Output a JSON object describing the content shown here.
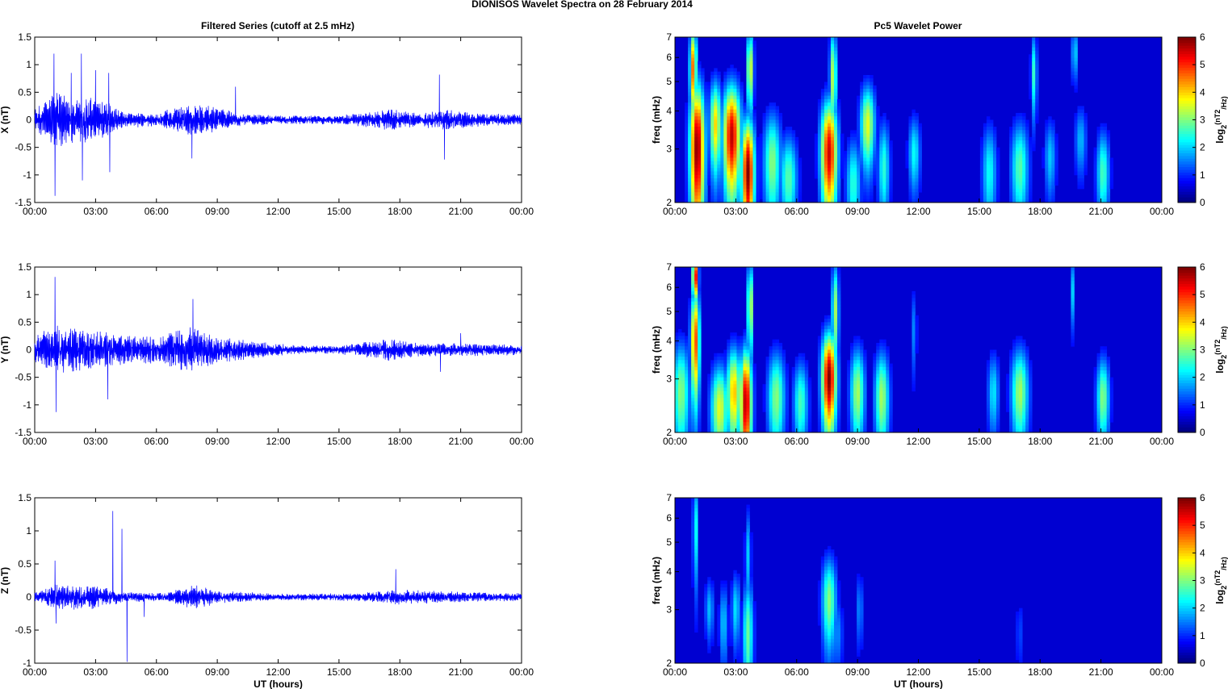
{
  "figure": {
    "suptitle": "DIONISOS Wavelet Spectra on 28 February  2014",
    "left_title": "Filtered Series (cutoff at 2.5 mHz)",
    "right_title": "Pc5 Wavelet Power",
    "xlabel": "UT (hours)"
  },
  "chart_data": [
    {
      "type": "line",
      "name": "x-series",
      "title": "Filtered Series (cutoff at 2.5 mHz)",
      "ylabel": "X (nT)",
      "xlabel": "",
      "xlim": [
        "00:00",
        "24:00"
      ],
      "ylim": [
        -1.5,
        1.5
      ],
      "x_ticks": [
        "00:00",
        "03:00",
        "06:00",
        "09:00",
        "12:00",
        "15:00",
        "18:00",
        "21:00",
        "00:00"
      ],
      "y_ticks": [
        "-1.5",
        "-1",
        "-0.5",
        "0",
        "0.5",
        "1",
        "1.5"
      ],
      "color": "#0000ff",
      "envelope": [
        {
          "t": 0.0,
          "amp": 0.25
        },
        {
          "t": 0.5,
          "amp": 0.35
        },
        {
          "t": 1.0,
          "amp": 0.55
        },
        {
          "t": 2.0,
          "amp": 0.45
        },
        {
          "t": 3.5,
          "amp": 0.35
        },
        {
          "t": 4.5,
          "amp": 0.15
        },
        {
          "t": 6.0,
          "amp": 0.12
        },
        {
          "t": 7.5,
          "amp": 0.3
        },
        {
          "t": 9.0,
          "amp": 0.25
        },
        {
          "t": 10.0,
          "amp": 0.12
        },
        {
          "t": 12.0,
          "amp": 0.08
        },
        {
          "t": 15.0,
          "amp": 0.08
        },
        {
          "t": 17.5,
          "amp": 0.2
        },
        {
          "t": 19.0,
          "amp": 0.12
        },
        {
          "t": 20.0,
          "amp": 0.2
        },
        {
          "t": 22.0,
          "amp": 0.12
        },
        {
          "t": 24.0,
          "amp": 0.1
        }
      ],
      "spikes": [
        {
          "t": 0.95,
          "v": 1.2
        },
        {
          "t": 1.0,
          "v": -1.38
        },
        {
          "t": 1.8,
          "v": 0.85
        },
        {
          "t": 2.3,
          "v": 1.2
        },
        {
          "t": 2.35,
          "v": -1.1
        },
        {
          "t": 3.0,
          "v": 0.9
        },
        {
          "t": 3.65,
          "v": 0.85
        },
        {
          "t": 3.7,
          "v": -0.95
        },
        {
          "t": 7.75,
          "v": -0.7
        },
        {
          "t": 9.9,
          "v": 0.6
        },
        {
          "t": 19.95,
          "v": 0.82
        },
        {
          "t": 20.2,
          "v": -0.72
        }
      ]
    },
    {
      "type": "line",
      "name": "y-series",
      "title": "",
      "ylabel": "Y (nT)",
      "xlabel": "",
      "xlim": [
        "00:00",
        "24:00"
      ],
      "ylim": [
        -1.5,
        1.5
      ],
      "x_ticks": [
        "00:00",
        "03:00",
        "06:00",
        "09:00",
        "12:00",
        "15:00",
        "18:00",
        "21:00",
        "00:00"
      ],
      "y_ticks": [
        "-1.5",
        "-1",
        "-0.5",
        "0",
        "0.5",
        "1",
        "1.5"
      ],
      "color": "#0000ff",
      "envelope": [
        {
          "t": 0.0,
          "amp": 0.25
        },
        {
          "t": 1.0,
          "amp": 0.45
        },
        {
          "t": 2.5,
          "amp": 0.4
        },
        {
          "t": 4.0,
          "amp": 0.3
        },
        {
          "t": 6.0,
          "amp": 0.25
        },
        {
          "t": 7.8,
          "amp": 0.45
        },
        {
          "t": 9.0,
          "amp": 0.25
        },
        {
          "t": 11.0,
          "amp": 0.15
        },
        {
          "t": 13.0,
          "amp": 0.08
        },
        {
          "t": 15.0,
          "amp": 0.08
        },
        {
          "t": 17.5,
          "amp": 0.2
        },
        {
          "t": 19.0,
          "amp": 0.12
        },
        {
          "t": 21.0,
          "amp": 0.12
        },
        {
          "t": 24.0,
          "amp": 0.1
        }
      ],
      "spikes": [
        {
          "t": 1.0,
          "v": 1.32
        },
        {
          "t": 1.05,
          "v": -1.13
        },
        {
          "t": 3.6,
          "v": -0.9
        },
        {
          "t": 7.8,
          "v": 0.92
        },
        {
          "t": 20.0,
          "v": -0.4
        },
        {
          "t": 21.0,
          "v": 0.3
        }
      ]
    },
    {
      "type": "line",
      "name": "z-series",
      "title": "",
      "ylabel": "Z (nT)",
      "xlabel": "UT (hours)",
      "xlim": [
        "00:00",
        "24:00"
      ],
      "ylim": [
        -1,
        1.5
      ],
      "x_ticks": [
        "00:00",
        "03:00",
        "06:00",
        "09:00",
        "12:00",
        "15:00",
        "18:00",
        "21:00",
        "00:00"
      ],
      "y_ticks": [
        "-1",
        "-0.5",
        "0",
        "0.5",
        "1",
        "1.5"
      ],
      "color": "#0000ff",
      "envelope": [
        {
          "t": 0.0,
          "amp": 0.08
        },
        {
          "t": 1.0,
          "amp": 0.2
        },
        {
          "t": 3.0,
          "amp": 0.18
        },
        {
          "t": 4.5,
          "amp": 0.08
        },
        {
          "t": 6.5,
          "amp": 0.06
        },
        {
          "t": 7.8,
          "amp": 0.2
        },
        {
          "t": 9.0,
          "amp": 0.1
        },
        {
          "t": 12.0,
          "amp": 0.05
        },
        {
          "t": 16.0,
          "amp": 0.06
        },
        {
          "t": 18.0,
          "amp": 0.12
        },
        {
          "t": 21.0,
          "amp": 0.08
        },
        {
          "t": 24.0,
          "amp": 0.06
        }
      ],
      "spikes": [
        {
          "t": 1.0,
          "v": 0.55
        },
        {
          "t": 1.05,
          "v": -0.4
        },
        {
          "t": 3.85,
          "v": 1.3
        },
        {
          "t": 4.3,
          "v": 1.03
        },
        {
          "t": 4.55,
          "v": -0.98
        },
        {
          "t": 5.4,
          "v": -0.3
        },
        {
          "t": 17.8,
          "v": 0.42
        }
      ]
    },
    {
      "type": "heatmap",
      "name": "x-wavelet",
      "title": "Pc5 Wavelet Power",
      "ylabel": "freq (mHz)",
      "xlabel": "",
      "xlim": [
        "00:00",
        "24:00"
      ],
      "ylim": [
        2,
        7
      ],
      "y_scale": "log",
      "x_ticks": [
        "00:00",
        "03:00",
        "06:00",
        "09:00",
        "12:00",
        "15:00",
        "18:00",
        "21:00",
        "00:00"
      ],
      "y_ticks": [
        "2",
        "3",
        "4",
        "5",
        "6",
        "7"
      ],
      "colorbar": {
        "label_base": "log",
        "label_sub": "2",
        "label_mid": "(nT",
        "label_sup": "2",
        "label_end": "/Hz)",
        "ticks": [
          "0",
          "1",
          "2",
          "3",
          "4",
          "5",
          "6"
        ],
        "colormap": "jet"
      },
      "blobs": [
        {
          "t": 1.1,
          "f": 3.0,
          "v": 6.0,
          "st": 0.25,
          "sf": 1.2
        },
        {
          "t": 0.9,
          "f": 5.5,
          "v": 4.5,
          "st": 0.12,
          "sf": 1.3
        },
        {
          "t": 2.0,
          "f": 3.6,
          "v": 3.8,
          "st": 0.2,
          "sf": 0.9
        },
        {
          "t": 2.8,
          "f": 3.3,
          "v": 5.6,
          "st": 0.3,
          "sf": 1.0
        },
        {
          "t": 3.6,
          "f": 2.5,
          "v": 6.0,
          "st": 0.22,
          "sf": 0.8
        },
        {
          "t": 3.7,
          "f": 5.5,
          "v": 3.5,
          "st": 0.12,
          "sf": 1.2
        },
        {
          "t": 4.8,
          "f": 2.7,
          "v": 2.8,
          "st": 0.3,
          "sf": 0.8
        },
        {
          "t": 5.6,
          "f": 2.4,
          "v": 2.5,
          "st": 0.3,
          "sf": 0.6
        },
        {
          "t": 7.6,
          "f": 2.9,
          "v": 5.5,
          "st": 0.28,
          "sf": 0.9
        },
        {
          "t": 7.8,
          "f": 5.2,
          "v": 3.2,
          "st": 0.12,
          "sf": 1.4
        },
        {
          "t": 8.8,
          "f": 2.3,
          "v": 2.2,
          "st": 0.25,
          "sf": 0.6
        },
        {
          "t": 9.5,
          "f": 3.6,
          "v": 3.4,
          "st": 0.25,
          "sf": 0.8
        },
        {
          "t": 10.3,
          "f": 2.6,
          "v": 2.2,
          "st": 0.2,
          "sf": 0.7
        },
        {
          "t": 11.8,
          "f": 2.9,
          "v": 2.0,
          "st": 0.2,
          "sf": 0.6
        },
        {
          "t": 15.5,
          "f": 2.5,
          "v": 2.0,
          "st": 0.25,
          "sf": 0.7
        },
        {
          "t": 17.0,
          "f": 2.6,
          "v": 2.5,
          "st": 0.3,
          "sf": 0.7
        },
        {
          "t": 17.7,
          "f": 5.3,
          "v": 2.3,
          "st": 0.1,
          "sf": 1.2
        },
        {
          "t": 18.5,
          "f": 2.8,
          "v": 1.6,
          "st": 0.2,
          "sf": 0.6
        },
        {
          "t": 19.7,
          "f": 6.2,
          "v": 1.8,
          "st": 0.1,
          "sf": 0.9
        },
        {
          "t": 20.0,
          "f": 3.2,
          "v": 1.5,
          "st": 0.2,
          "sf": 0.6
        },
        {
          "t": 21.1,
          "f": 2.5,
          "v": 2.4,
          "st": 0.22,
          "sf": 0.6
        }
      ]
    },
    {
      "type": "heatmap",
      "name": "y-wavelet",
      "title": "",
      "ylabel": "freq (mHz)",
      "xlabel": "",
      "xlim": [
        "00:00",
        "24:00"
      ],
      "ylim": [
        2,
        7
      ],
      "y_scale": "log",
      "x_ticks": [
        "00:00",
        "03:00",
        "06:00",
        "09:00",
        "12:00",
        "15:00",
        "18:00",
        "21:00",
        "00:00"
      ],
      "y_ticks": [
        "2",
        "3",
        "4",
        "5",
        "6",
        "7"
      ],
      "colorbar": {
        "label_base": "log",
        "label_sub": "2",
        "label_mid": "(nT",
        "label_sup": "2",
        "label_end": "/Hz)",
        "ticks": [
          "0",
          "1",
          "2",
          "3",
          "4",
          "5",
          "6"
        ],
        "colormap": "jet"
      },
      "blobs": [
        {
          "t": 0.3,
          "f": 2.7,
          "v": 2.8,
          "st": 0.3,
          "sf": 0.8
        },
        {
          "t": 1.0,
          "f": 4.0,
          "v": 4.8,
          "st": 0.15,
          "sf": 1.2
        },
        {
          "t": 1.0,
          "f": 6.5,
          "v": 5.5,
          "st": 0.1,
          "sf": 0.8
        },
        {
          "t": 2.2,
          "f": 2.4,
          "v": 3.4,
          "st": 0.3,
          "sf": 0.6
        },
        {
          "t": 2.9,
          "f": 2.7,
          "v": 4.0,
          "st": 0.25,
          "sf": 0.7
        },
        {
          "t": 3.5,
          "f": 2.5,
          "v": 5.8,
          "st": 0.2,
          "sf": 0.8
        },
        {
          "t": 3.7,
          "f": 5.2,
          "v": 3.4,
          "st": 0.1,
          "sf": 1.3
        },
        {
          "t": 5.0,
          "f": 2.6,
          "v": 2.8,
          "st": 0.3,
          "sf": 0.7
        },
        {
          "t": 6.2,
          "f": 2.5,
          "v": 2.4,
          "st": 0.25,
          "sf": 0.6
        },
        {
          "t": 7.6,
          "f": 3.0,
          "v": 6.0,
          "st": 0.25,
          "sf": 0.8
        },
        {
          "t": 7.9,
          "f": 5.0,
          "v": 3.0,
          "st": 0.12,
          "sf": 1.4
        },
        {
          "t": 9.0,
          "f": 2.7,
          "v": 3.0,
          "st": 0.25,
          "sf": 0.7
        },
        {
          "t": 10.2,
          "f": 2.6,
          "v": 3.0,
          "st": 0.25,
          "sf": 0.7
        },
        {
          "t": 11.8,
          "f": 4.3,
          "v": 1.3,
          "st": 0.08,
          "sf": 1.0
        },
        {
          "t": 15.7,
          "f": 2.7,
          "v": 1.8,
          "st": 0.2,
          "sf": 0.6
        },
        {
          "t": 17.0,
          "f": 2.7,
          "v": 3.0,
          "st": 0.3,
          "sf": 0.7
        },
        {
          "t": 19.6,
          "f": 5.8,
          "v": 1.6,
          "st": 0.08,
          "sf": 1.1
        },
        {
          "t": 21.1,
          "f": 2.6,
          "v": 2.8,
          "st": 0.22,
          "sf": 0.6
        }
      ]
    },
    {
      "type": "heatmap",
      "name": "z-wavelet",
      "title": "",
      "ylabel": "freq (mHz)",
      "xlabel": "UT (hours)",
      "xlim": [
        "00:00",
        "24:00"
      ],
      "ylim": [
        2,
        7
      ],
      "y_scale": "log",
      "x_ticks": [
        "00:00",
        "03:00",
        "06:00",
        "09:00",
        "12:00",
        "15:00",
        "18:00",
        "21:00",
        "00:00"
      ],
      "y_ticks": [
        "2",
        "3",
        "4",
        "5",
        "6",
        "7"
      ],
      "colorbar": {
        "label_base": "log",
        "label_sub": "2",
        "label_mid": "(nT",
        "label_sup": "2",
        "label_end": "/Hz)",
        "ticks": [
          "0",
          "1",
          "2",
          "3",
          "4",
          "5",
          "6"
        ],
        "colormap": "jet"
      },
      "blobs": [
        {
          "t": 1.0,
          "f": 5.5,
          "v": 2.2,
          "st": 0.08,
          "sf": 1.6
        },
        {
          "t": 1.7,
          "f": 3.0,
          "v": 1.5,
          "st": 0.15,
          "sf": 0.5
        },
        {
          "t": 2.4,
          "f": 2.7,
          "v": 1.6,
          "st": 0.15,
          "sf": 0.6
        },
        {
          "t": 3.0,
          "f": 3.0,
          "v": 1.8,
          "st": 0.15,
          "sf": 0.6
        },
        {
          "t": 3.6,
          "f": 2.5,
          "v": 2.6,
          "st": 0.18,
          "sf": 0.8
        },
        {
          "t": 3.6,
          "f": 4.5,
          "v": 1.6,
          "st": 0.1,
          "sf": 1.2
        },
        {
          "t": 7.6,
          "f": 3.2,
          "v": 2.8,
          "st": 0.25,
          "sf": 0.8
        },
        {
          "t": 8.0,
          "f": 2.5,
          "v": 1.2,
          "st": 0.2,
          "sf": 0.5
        },
        {
          "t": 9.1,
          "f": 3.0,
          "v": 1.2,
          "st": 0.12,
          "sf": 0.6
        },
        {
          "t": 17.0,
          "f": 2.5,
          "v": 0.7,
          "st": 0.15,
          "sf": 0.5
        }
      ]
    }
  ]
}
